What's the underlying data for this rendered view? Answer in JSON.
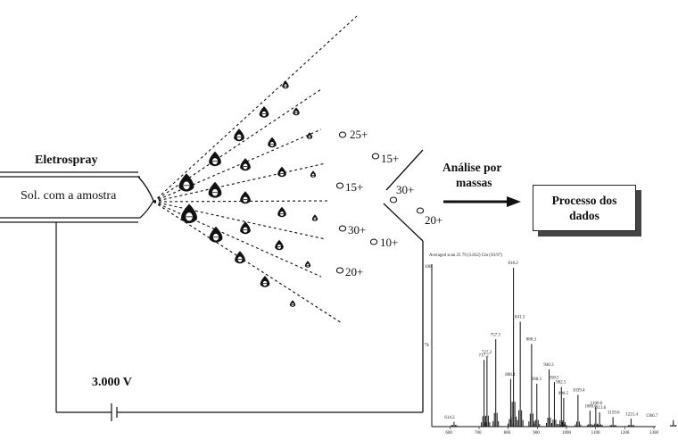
{
  "electrospray": {
    "title": "Eletrospray",
    "capillary_label": "Sol. com a amostra",
    "voltage": "3.000 V"
  },
  "ions": [
    "25+",
    "15+",
    "15+",
    "30+",
    "10+",
    "20+",
    "30+",
    "20+"
  ],
  "analysis": {
    "label_line1": "Análise por",
    "label_line2": "massas"
  },
  "data_box": {
    "line1": "Processo dos",
    "line2": "dados"
  },
  "spectrum": {
    "header": "Averaged scan 25 79 (3.832) Cm (50:97)",
    "ytick_top": "100",
    "ytick_mid": "%",
    "peak_labels": [
      "818.2",
      "717.2",
      "757.3",
      "841.3",
      "880.3",
      "727.2",
      "808.4",
      "898.3",
      "940.3",
      "982.5",
      "990.5",
      "958.5",
      "1039.4",
      "1113.6",
      "1080.6",
      "1100.6",
      "1159.6",
      "1221.4",
      "1366.7",
      "614.2"
    ],
    "xtick_labels": [
      "600",
      "700",
      "800",
      "900",
      "1000",
      "1100",
      "1200",
      "1300"
    ]
  },
  "colors": {
    "ink": "#111111",
    "background": "#ffffff"
  }
}
